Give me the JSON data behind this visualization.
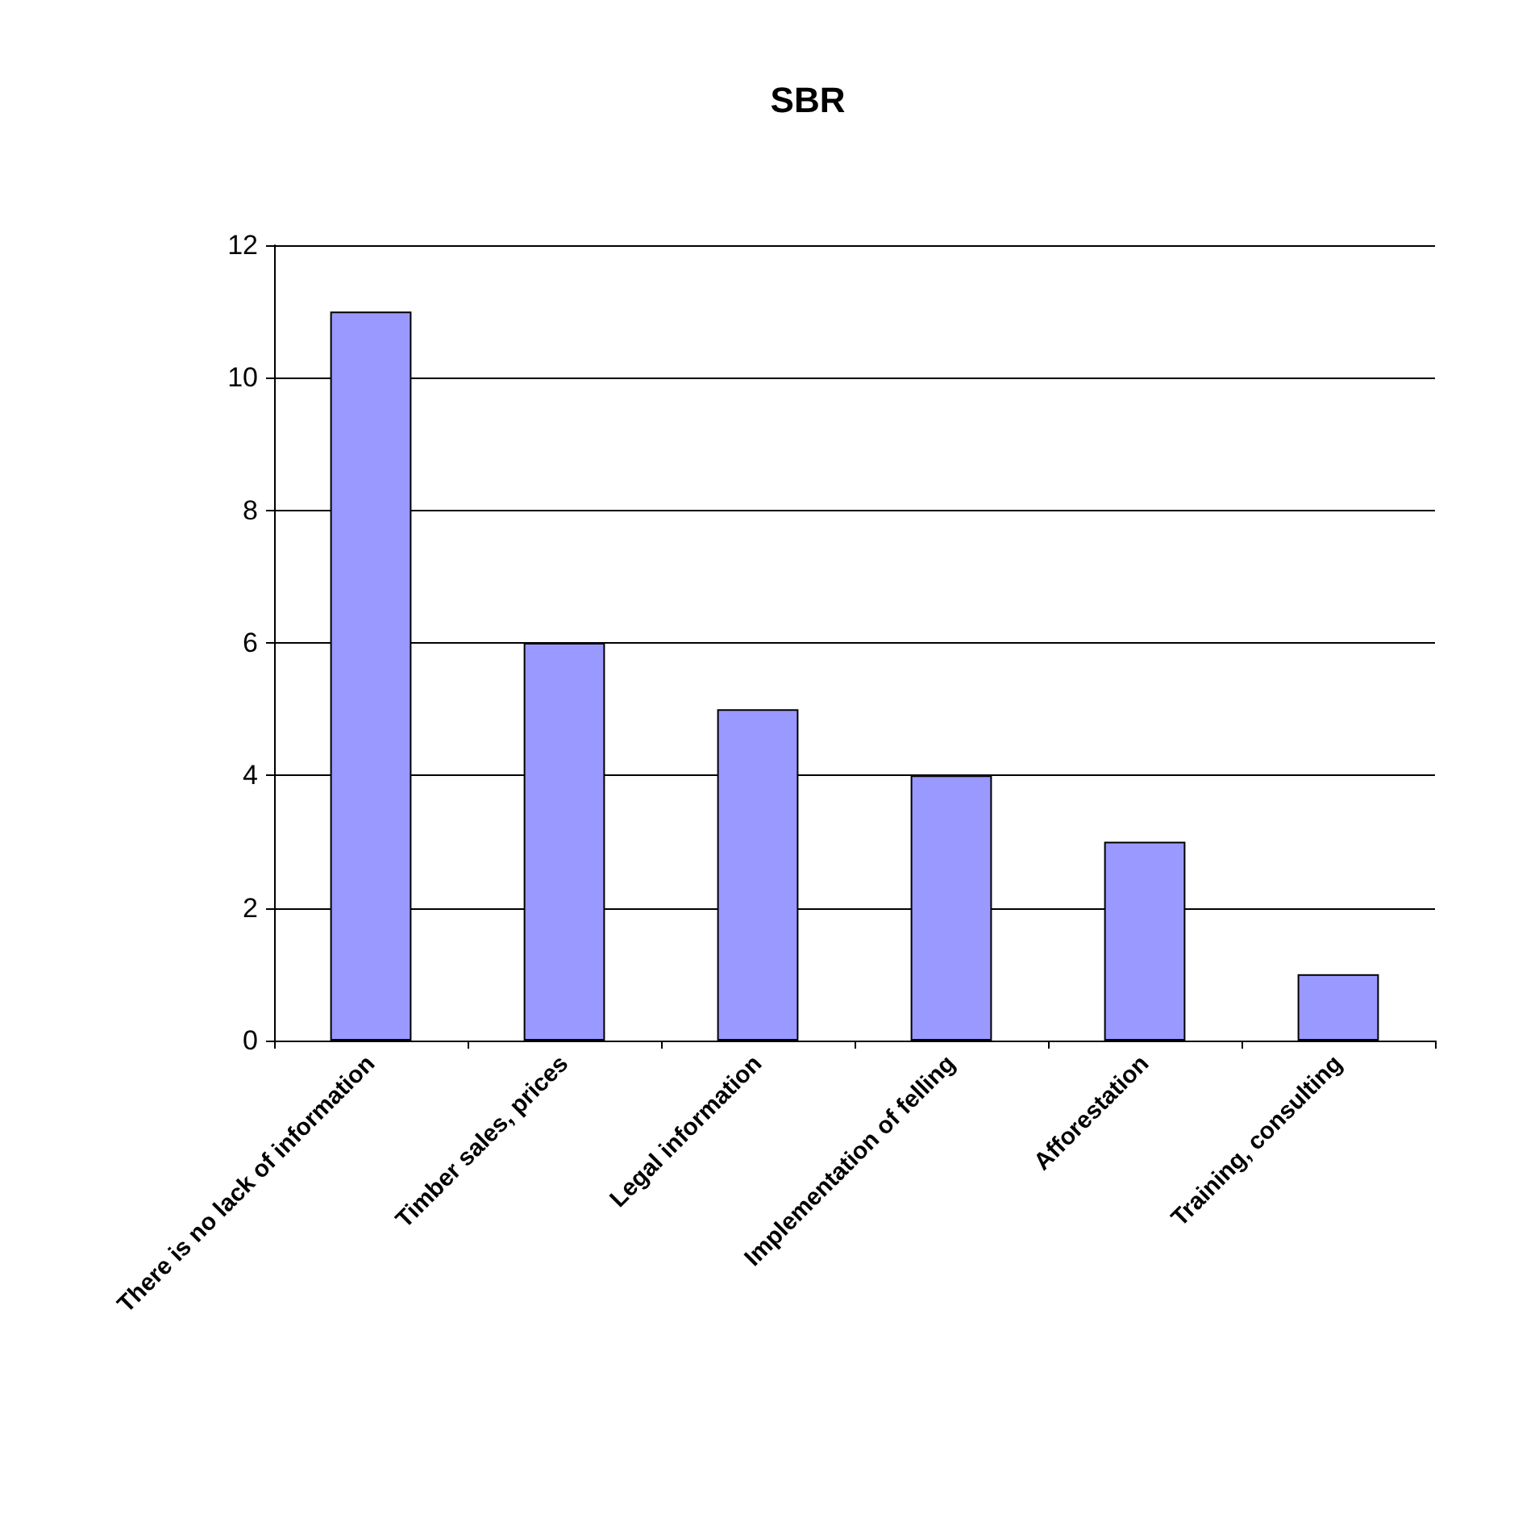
{
  "chart_data": {
    "type": "bar",
    "title": "SBR",
    "categories": [
      "There is no lack of information",
      "Timber sales, prices",
      "Legal information",
      "Implementation of felling",
      "Afforestation",
      "Training, consulting"
    ],
    "values": [
      11,
      6,
      5,
      4,
      3,
      1
    ],
    "color": "#9999ff",
    "ylim": [
      0,
      12
    ],
    "yticks": [
      0,
      2,
      4,
      6,
      8,
      10,
      12
    ],
    "grid": "y"
  }
}
